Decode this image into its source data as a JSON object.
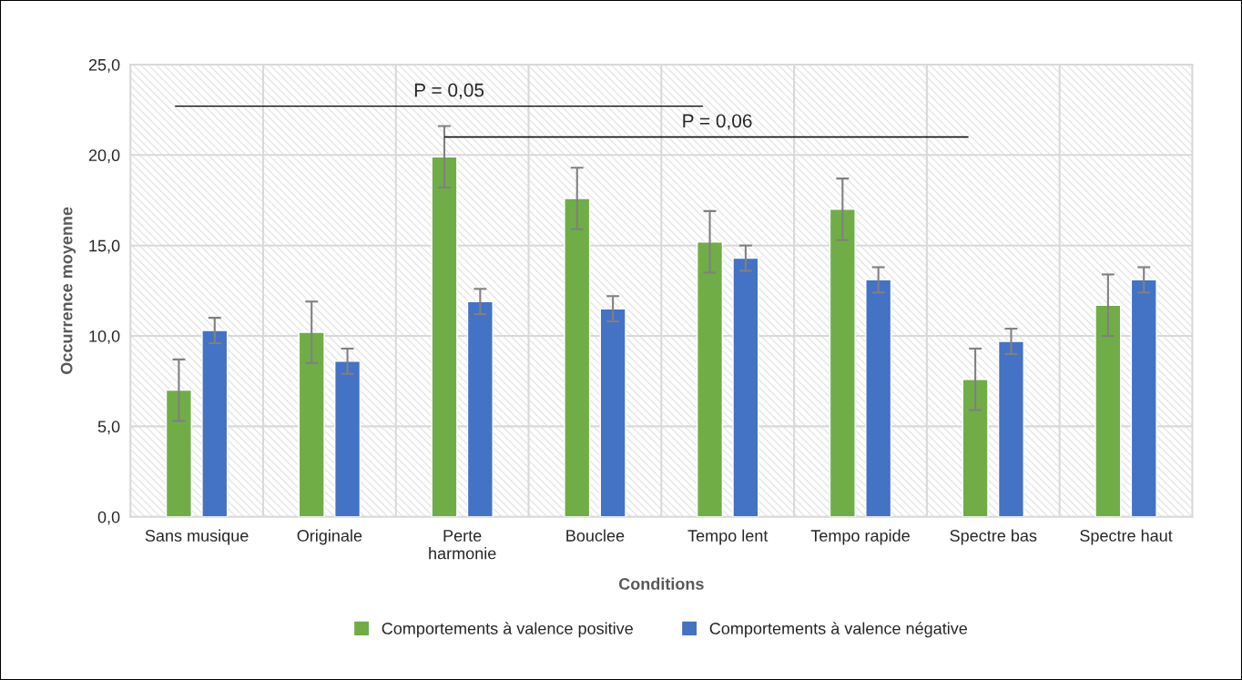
{
  "chart_data": {
    "type": "bar",
    "xlabel": "Conditions",
    "ylabel": "Occurrence moyenne",
    "categories": [
      "Sans musique",
      "Originale",
      "Perte\nharmonie",
      "Bouclee",
      "Tempo lent",
      "Tempo rapide",
      "Spectre bas",
      "Spectre haut"
    ],
    "series": [
      {
        "name": "Comportements à valence positive",
        "color": "#70ad47",
        "values": [
          7.0,
          10.2,
          19.9,
          17.6,
          15.2,
          17.0,
          7.6,
          11.7
        ],
        "errors": [
          1.7,
          1.7,
          1.7,
          1.7,
          1.7,
          1.7,
          1.7,
          1.7
        ]
      },
      {
        "name": "Comportements à valence négative",
        "color": "#4472c4",
        "values": [
          10.3,
          8.6,
          11.9,
          11.5,
          14.3,
          13.1,
          9.7,
          13.1
        ],
        "errors": [
          0.7,
          0.7,
          0.7,
          0.7,
          0.7,
          0.7,
          0.7,
          0.7
        ]
      }
    ],
    "ylim": [
      0,
      25
    ],
    "yticks": [
      {
        "value": 0,
        "label": "0,0"
      },
      {
        "value": 5,
        "label": "5,0"
      },
      {
        "value": 10,
        "label": "10,0"
      },
      {
        "value": 15,
        "label": "15,0"
      },
      {
        "value": 20,
        "label": "20,0"
      },
      {
        "value": 25,
        "label": "25,0"
      }
    ],
    "annotations": [
      "P = 0,05",
      "P = 0,06"
    ],
    "grid": true,
    "legend": "bottom"
  }
}
